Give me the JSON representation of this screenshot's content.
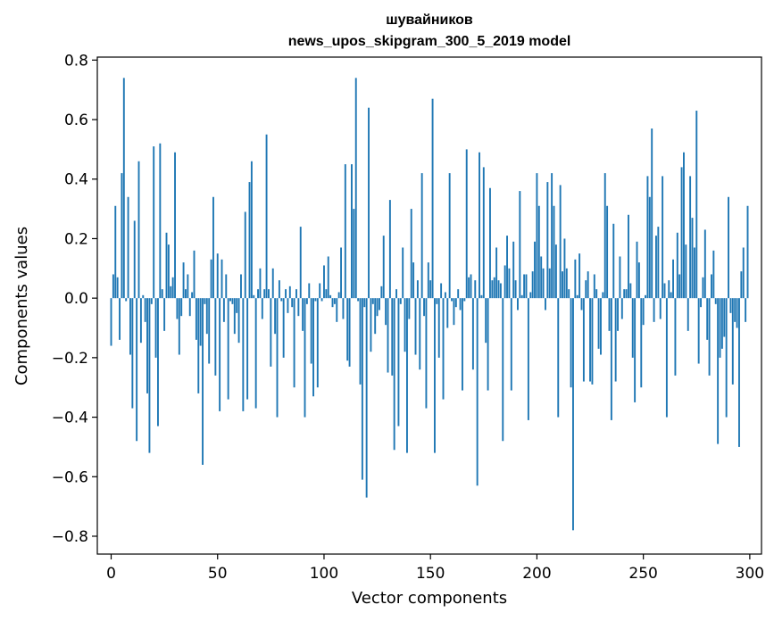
{
  "chart_data": {
    "type": "bar",
    "title_line1": "шувайников",
    "title_line2": "news_upos_skipgram_300_5_2019 model",
    "xlabel": "Vector components",
    "ylabel": "Components values",
    "xlim": [
      -6.5,
      305.5
    ],
    "ylim": [
      -0.86,
      0.81
    ],
    "xticks": [
      0,
      50,
      100,
      150,
      200,
      250,
      300
    ],
    "yticks": [
      -0.8,
      -0.6,
      -0.4,
      -0.2,
      0.0,
      0.2,
      0.4,
      0.6,
      0.8
    ],
    "ytick_labels": [
      "−0.8",
      "−0.6",
      "−0.4",
      "−0.2",
      "0.0",
      "0.2",
      "0.4",
      "0.6",
      "0.8"
    ],
    "bar_color": "#1f77b4",
    "values": [
      -0.16,
      0.08,
      0.31,
      0.07,
      -0.14,
      0.42,
      0.74,
      -0.01,
      0.34,
      -0.19,
      -0.37,
      0.26,
      -0.48,
      0.46,
      -0.15,
      0.01,
      -0.08,
      -0.32,
      -0.52,
      -0.02,
      0.51,
      -0.2,
      -0.43,
      0.52,
      0.03,
      -0.11,
      0.22,
      0.18,
      0.04,
      0.07,
      0.49,
      -0.07,
      -0.19,
      -0.06,
      0.12,
      0.03,
      0.08,
      -0.06,
      0.02,
      0.16,
      -0.14,
      -0.32,
      -0.16,
      -0.56,
      -0.02,
      -0.12,
      -0.22,
      0.13,
      0.34,
      -0.26,
      0.15,
      -0.38,
      0.13,
      -0.08,
      0.08,
      -0.34,
      -0.01,
      -0.02,
      -0.12,
      -0.05,
      -0.15,
      0.08,
      -0.38,
      0.29,
      -0.34,
      0.39,
      0.46,
      0.01,
      -0.37,
      0.03,
      0.1,
      -0.07,
      0.03,
      0.55,
      0.03,
      -0.23,
      0.1,
      -0.12,
      -0.4,
      0.06,
      -0.01,
      -0.2,
      0.03,
      -0.05,
      0.04,
      -0.03,
      -0.3,
      0.03,
      -0.06,
      0.24,
      -0.11,
      -0.4,
      -0.02,
      0.05,
      -0.22,
      -0.33,
      -0.01,
      -0.3,
      0.05,
      -0.01,
      0.11,
      0.03,
      0.14,
      0.01,
      -0.03,
      -0.02,
      -0.08,
      0.02,
      0.17,
      -0.07,
      0.45,
      -0.21,
      -0.23,
      0.45,
      0.3,
      0.74,
      -0.01,
      -0.29,
      -0.61,
      -0.03,
      -0.67,
      0.64,
      -0.18,
      -0.02,
      -0.12,
      -0.06,
      -0.04,
      0.04,
      0.21,
      -0.09,
      -0.25,
      0.33,
      -0.26,
      -0.51,
      0.03,
      -0.43,
      -0.02,
      0.17,
      -0.18,
      -0.52,
      -0.07,
      0.3,
      0.12,
      -0.19,
      0.06,
      -0.24,
      0.42,
      -0.06,
      -0.37,
      0.12,
      0.06,
      0.67,
      -0.52,
      -0.02,
      -0.2,
      0.05,
      -0.34,
      0.02,
      -0.1,
      0.42,
      -0.01,
      -0.09,
      -0.03,
      0.03,
      -0.04,
      -0.31,
      -0.01,
      0.5,
      0.07,
      0.08,
      -0.24,
      0.06,
      -0.63,
      0.49,
      0.01,
      0.44,
      -0.15,
      -0.31,
      0.37,
      0.06,
      0.07,
      0.17,
      0.06,
      0.05,
      -0.48,
      0.11,
      0.21,
      0.1,
      -0.31,
      0.19,
      0.06,
      -0.04,
      0.36,
      0.01,
      0.08,
      0.08,
      -0.41,
      0.02,
      0.09,
      0.19,
      0.42,
      0.31,
      0.14,
      0.1,
      -0.04,
      0.39,
      0.1,
      0.42,
      0.31,
      0.18,
      -0.4,
      0.38,
      0.09,
      0.2,
      0.1,
      0.03,
      -0.3,
      -0.78,
      0.13,
      0.01,
      0.15,
      -0.04,
      -0.28,
      0.06,
      0.09,
      -0.28,
      -0.29,
      0.08,
      0.03,
      -0.17,
      -0.19,
      0.02,
      0.42,
      0.31,
      -0.11,
      -0.41,
      0.25,
      -0.28,
      -0.11,
      0.14,
      -0.07,
      0.03,
      0.03,
      0.28,
      0.05,
      -0.2,
      -0.35,
      0.19,
      0.12,
      -0.3,
      -0.09,
      0.01,
      0.41,
      0.34,
      0.57,
      -0.08,
      0.21,
      0.24,
      -0.07,
      0.41,
      0.05,
      -0.4,
      0.06,
      0.02,
      0.13,
      -0.26,
      0.22,
      0.08,
      0.44,
      0.49,
      0.18,
      -0.11,
      0.41,
      0.27,
      0.17,
      0.63,
      -0.22,
      -0.03,
      0.07,
      0.23,
      -0.14,
      -0.26,
      0.08,
      0.16,
      -0.02,
      -0.49,
      -0.2,
      -0.17,
      -0.13,
      -0.4,
      0.34,
      -0.05,
      -0.29,
      -0.08,
      -0.1,
      -0.5,
      0.09,
      0.17,
      -0.08,
      0.31
    ]
  }
}
